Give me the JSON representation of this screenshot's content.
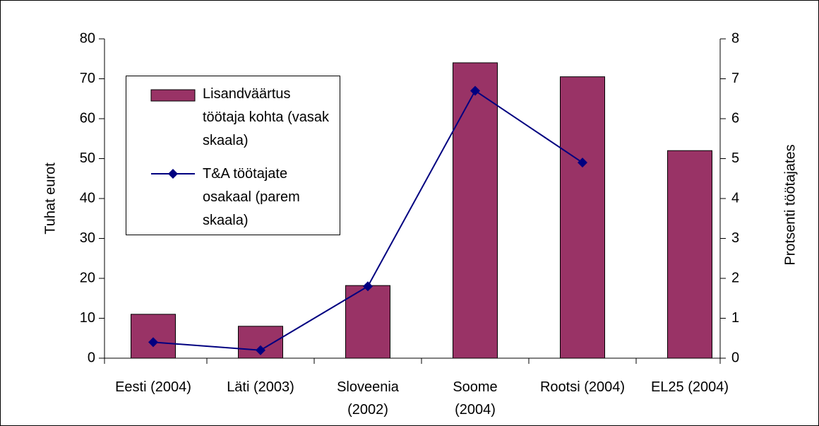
{
  "chart_data": {
    "type": "bar_line",
    "categories": [
      "Eesti (2004)",
      "Läti (2003)",
      "Sloveenia\n(2002)",
      "Soome\n(2004)",
      "Rootsi (2004)",
      "EL25 (2004)"
    ],
    "series": [
      {
        "name": "Lisandväärtus töötaja kohta (vasak skaala)",
        "type": "bar",
        "color": "#993366",
        "values": [
          11,
          8,
          18.2,
          74,
          70.5,
          52
        ]
      },
      {
        "name": "T&A töötajate osakaal (parem skaala)",
        "type": "line",
        "axis": "y2",
        "color": "#000080",
        "values": [
          0.4,
          0.2,
          1.8,
          6.7,
          4.9,
          null
        ]
      }
    ],
    "ylabel": "Tuhat eurot",
    "y2label": "Protsenti töötajates",
    "ylim": [
      0,
      80
    ],
    "yticks": [
      0,
      10,
      20,
      30,
      40,
      50,
      60,
      70,
      80
    ],
    "y2lim": [
      0,
      8
    ],
    "y2ticks": [
      0,
      1,
      2,
      3,
      4,
      5,
      6,
      7,
      8
    ],
    "legend": "upper left",
    "grid": false
  }
}
